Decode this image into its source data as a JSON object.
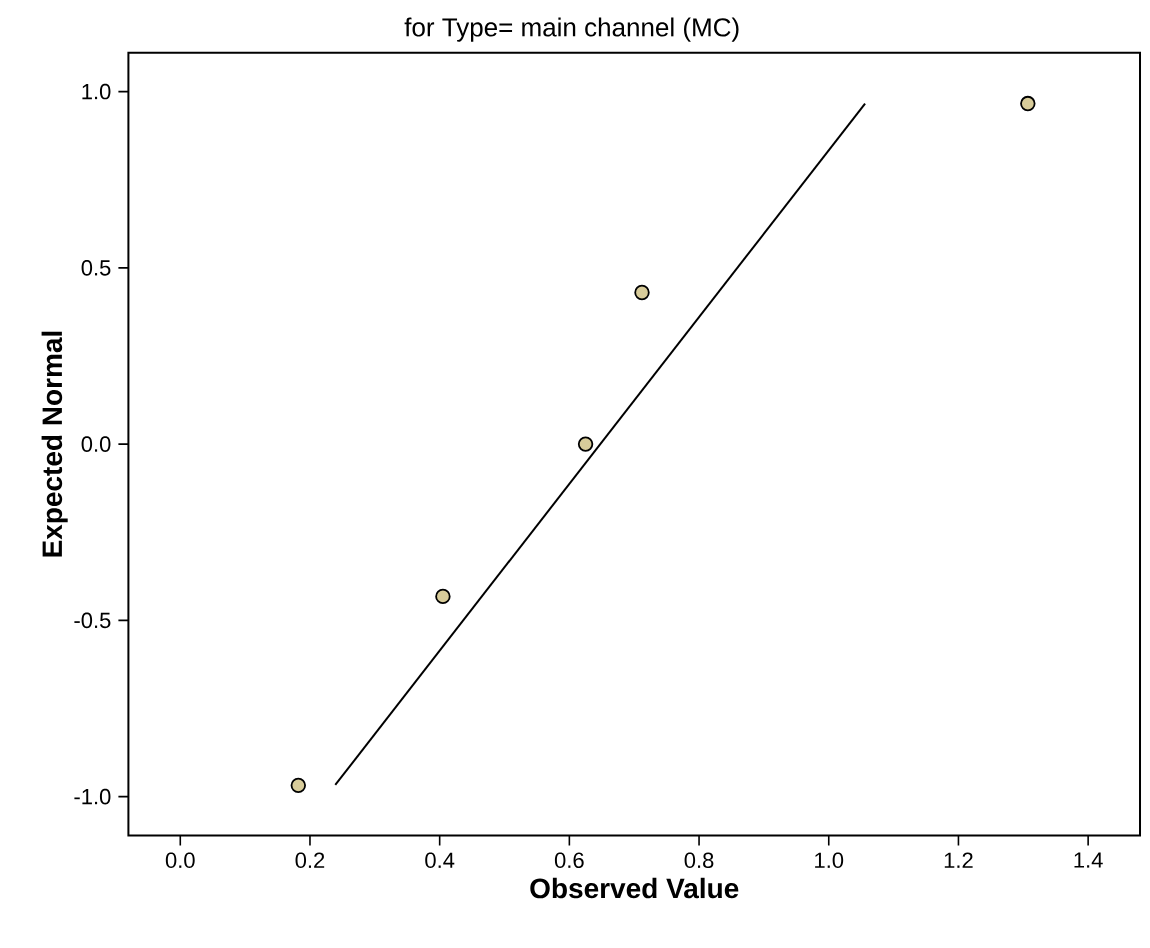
{
  "chart_data": {
    "type": "scatter",
    "title": "for Type= main channel (MC)",
    "xlabel": "Observed Value",
    "ylabel": "Expected Normal",
    "xlim": [
      -0.08,
      1.48
    ],
    "ylim": [
      -1.11,
      1.11
    ],
    "xticks": [
      {
        "value": 0,
        "label": "0.0"
      },
      0.2,
      0.4,
      0.6,
      0.8,
      {
        "value": 1,
        "label": "1.0"
      },
      1.2,
      1.4
    ],
    "yticks": [
      {
        "value": -1,
        "label": "-1.0"
      },
      -0.5,
      {
        "value": 0,
        "label": "0.0"
      },
      0.5,
      {
        "value": 1,
        "label": "1.0"
      }
    ],
    "grid": false,
    "series": [
      {
        "color": "#d8cc9a",
        "marker": "circle",
        "x": [
          0.182,
          0.405,
          0.625,
          0.712,
          1.307
        ],
        "values": [
          -0.968,
          -0.432,
          0.0,
          0.43,
          0.966
        ]
      },
      {
        "type": "line",
        "color": "#000000",
        "line_style": "solid",
        "x": [
          0.239,
          1.056
        ],
        "values": [
          -0.967,
          0.966
        ]
      }
    ]
  }
}
